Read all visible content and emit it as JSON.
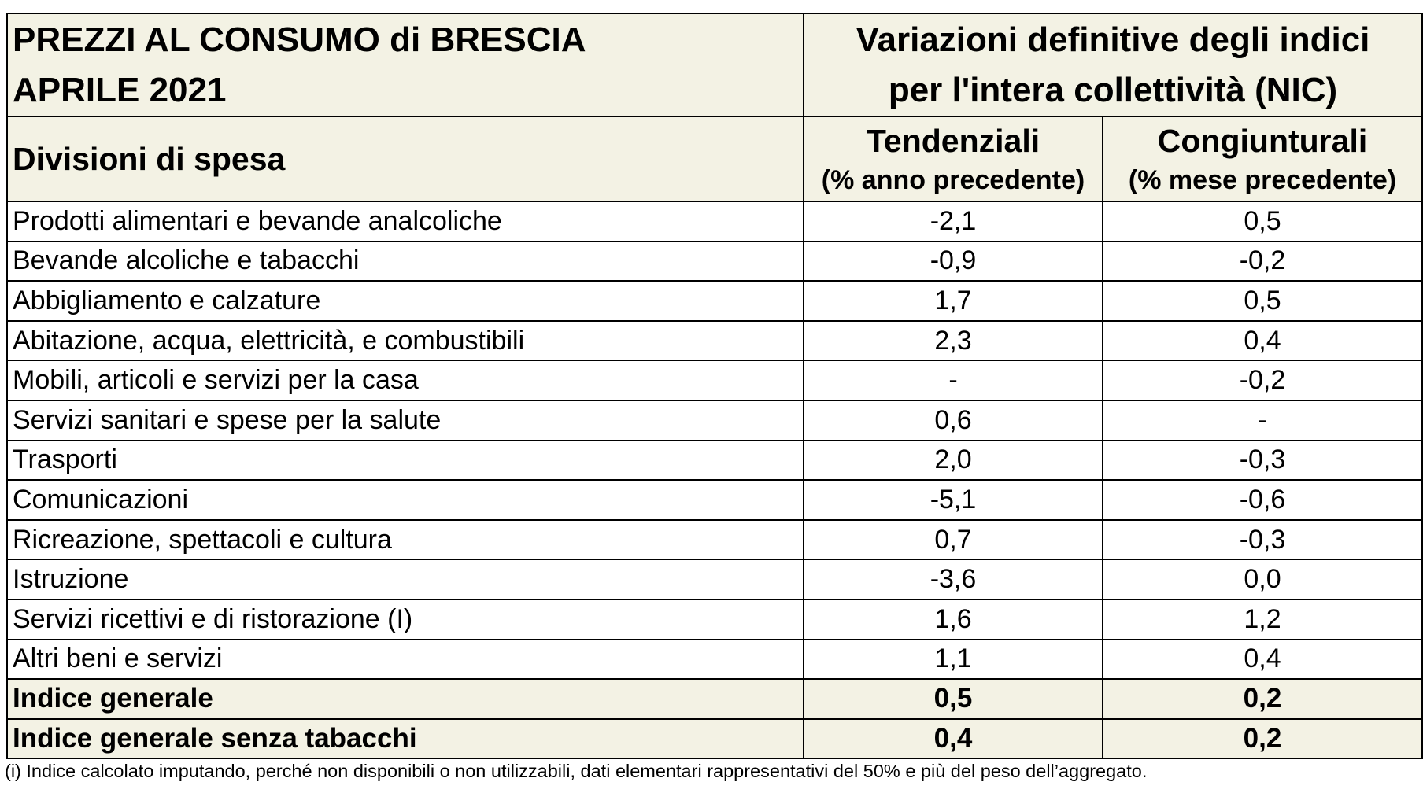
{
  "title_line1": "PREZZI AL CONSUMO di BRESCIA",
  "title_line2": "APRILE 2021",
  "subtitle_line1": "Variazioni definitive degli indici",
  "subtitle_line2": "per l'intera collettività (NIC)",
  "columns": {
    "label": "Divisioni di spesa",
    "tendenziali": "Tendenziali",
    "tendenziali_sub": "(% anno precedente)",
    "congiunturali": "Congiunturali",
    "congiunturali_sub": "(% mese precedente)"
  },
  "rows": [
    {
      "name": "Prodotti alimentari e bevande analcoliche",
      "tend": "-2,1",
      "cong": "0,5"
    },
    {
      "name": "Bevande alcoliche e tabacchi",
      "tend": "-0,9",
      "cong": "-0,2"
    },
    {
      "name": "Abbigliamento e calzature",
      "tend": "1,7",
      "cong": "0,5"
    },
    {
      "name": "Abitazione, acqua, elettricità, e combustibili",
      "tend": "2,3",
      "cong": "0,4"
    },
    {
      "name": "Mobili, articoli e servizi per la casa",
      "tend": "-",
      "cong": "-0,2"
    },
    {
      "name": "Servizi sanitari e spese per la salute",
      "tend": "0,6",
      "cong": "-"
    },
    {
      "name": "Trasporti",
      "tend": "2,0",
      "cong": "-0,3"
    },
    {
      "name": "Comunicazioni",
      "tend": "-5,1",
      "cong": "-0,6"
    },
    {
      "name": "Ricreazione, spettacoli e cultura",
      "tend": "0,7",
      "cong": "-0,3"
    },
    {
      "name": "Istruzione",
      "tend": "-3,6",
      "cong": "0,0"
    },
    {
      "name": "Servizi ricettivi e di ristorazione (I)",
      "tend": "1,6",
      "cong": "1,2"
    },
    {
      "name": "Altri beni e servizi",
      "tend": "1,1",
      "cong": "0,4"
    }
  ],
  "totals": [
    {
      "name": "Indice generale",
      "tend": "0,5",
      "cong": "0,2"
    },
    {
      "name": "Indice generale senza tabacchi",
      "tend": "0,4",
      "cong": "0,2"
    }
  ],
  "footnote": "(i) Indice calcolato imputando, perché non disponibili o non utilizzabili, dati elementari rappresentativi del 50% e più del peso dell’aggregato.",
  "colors": {
    "header_bg": "#f3f2e4",
    "border": "#000000"
  }
}
